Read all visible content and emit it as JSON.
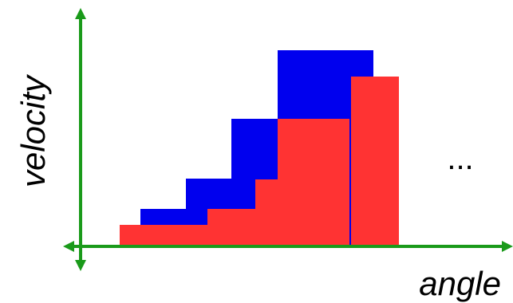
{
  "labels": {
    "y_axis": "velocity",
    "x_axis": "angle",
    "continuation": "..."
  },
  "colors": {
    "axis": "#1a9a1a",
    "blue_bars": "#0000ee",
    "red_bars": "#ff3333",
    "background": "#ffffff"
  },
  "chart_data": {
    "type": "bar",
    "series": [
      {
        "color": "blue",
        "values": [
          0.22,
          0.4,
          0.75,
          1.0
        ]
      },
      {
        "color": "red",
        "values": [
          0.13,
          0.22,
          0.39,
          1.0
        ]
      }
    ]
  }
}
